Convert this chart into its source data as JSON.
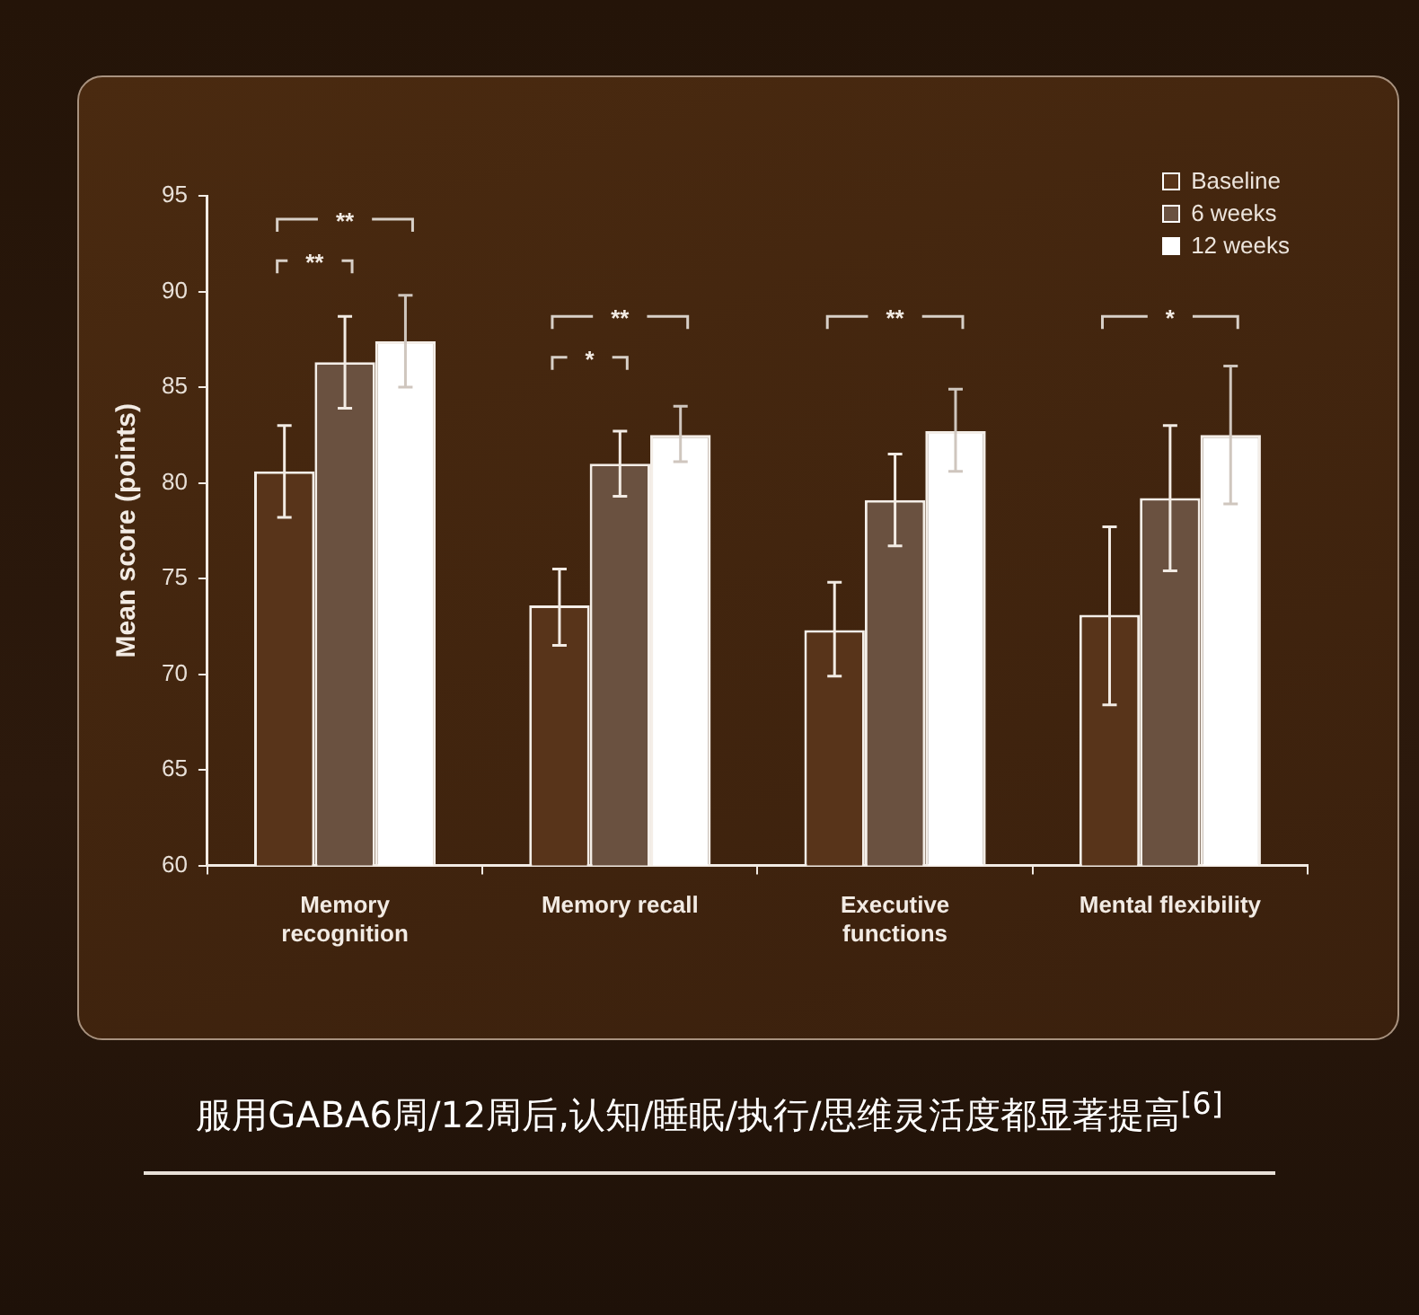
{
  "chart_data": {
    "type": "bar",
    "categories": [
      "Memory\nrecognition",
      "Memory recall",
      "Executive\nfunctions",
      "Mental flexibility"
    ],
    "ylabel": "Mean score (points)",
    "ylim": [
      60,
      95
    ],
    "yticks": [
      60,
      65,
      70,
      75,
      80,
      85,
      90,
      95
    ],
    "grid": false,
    "legend": "top right",
    "series": [
      {
        "name": "Baseline",
        "color": "#58341a",
        "values": [
          80.6,
          73.6,
          72.3,
          73.1
        ],
        "errors": [
          [
            78.2,
            83.0
          ],
          [
            71.5,
            75.5
          ],
          [
            69.9,
            74.8
          ],
          [
            68.4,
            77.7
          ]
        ]
      },
      {
        "name": "6 weeks",
        "color": "#6a5140",
        "values": [
          86.3,
          81.0,
          79.1,
          79.2
        ],
        "errors": [
          [
            83.9,
            88.7
          ],
          [
            79.3,
            82.7
          ],
          [
            76.7,
            81.5
          ],
          [
            75.4,
            83.0
          ]
        ]
      },
      {
        "name": "12 weeks",
        "color": "#ffffff",
        "values": [
          87.4,
          82.5,
          82.7,
          82.5
        ],
        "errors": [
          [
            85.0,
            89.8
          ],
          [
            81.1,
            84.0
          ],
          [
            80.6,
            84.9
          ],
          [
            78.9,
            86.1
          ]
        ]
      }
    ],
    "annotations": [
      "**",
      "**",
      "**",
      "*",
      "**",
      "*",
      "服用GABA6周/12周后,认知/睡眠/执行/思维灵活度都显著提高$^{[6]}$"
    ]
  }
}
